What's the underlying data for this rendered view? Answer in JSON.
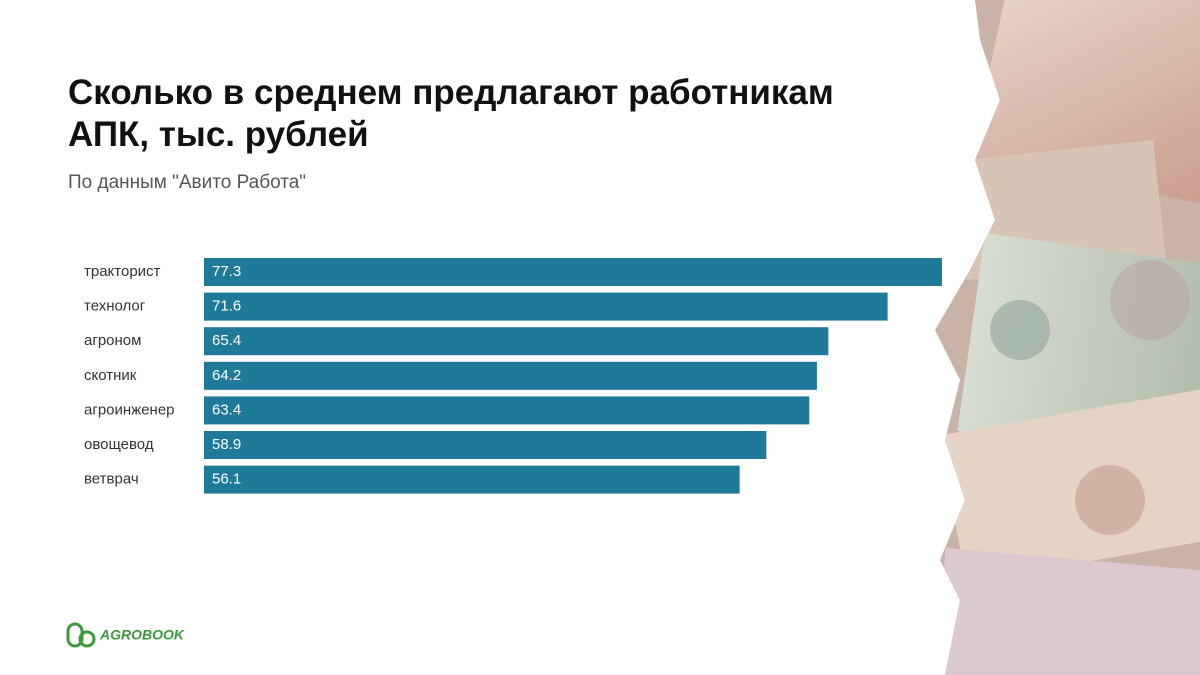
{
  "chart_data": {
    "type": "barh",
    "title": "Сколько в среднем предлагают работникам АПК, тыс. рублей",
    "subtitle": "По данным \"Авито Работа\"",
    "categories": [
      "тракторист",
      "технолог",
      "агроном",
      "скотник",
      "агроинженер",
      "овощевод",
      "ветврач"
    ],
    "values": [
      77.3,
      71.6,
      65.4,
      64.2,
      63.4,
      58.9,
      56.1
    ],
    "color": "#1f7a99"
  },
  "logo": "AGROBOOK"
}
